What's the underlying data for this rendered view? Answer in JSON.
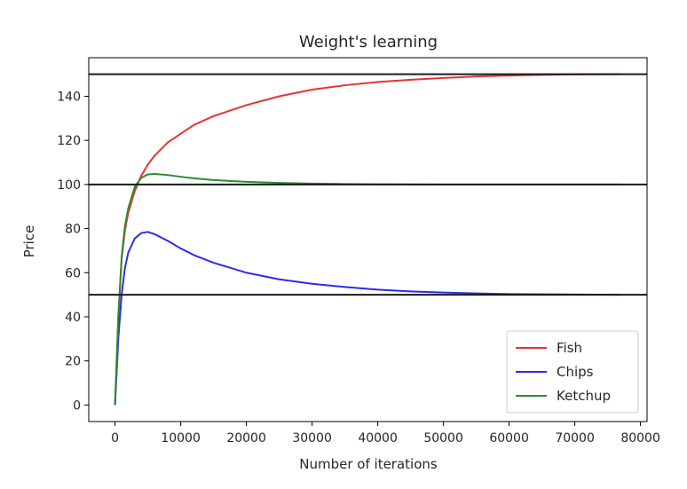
{
  "chart_data": {
    "type": "line",
    "title": "Weight's learning",
    "xlabel": "Number of iterations",
    "ylabel": "Price",
    "xlim": [
      -4000,
      81000
    ],
    "ylim": [
      -7.5,
      157.5
    ],
    "xticks": [
      0,
      10000,
      20000,
      30000,
      40000,
      50000,
      60000,
      70000,
      80000
    ],
    "yticks": [
      0,
      20,
      40,
      60,
      80,
      100,
      120,
      140
    ],
    "grid": false,
    "legend_position": "lower-right",
    "hlines": [
      {
        "y": 150,
        "color": "#1a1a1a"
      },
      {
        "y": 100,
        "color": "#1a1a1a"
      },
      {
        "y": 50,
        "color": "#1a1a1a"
      }
    ],
    "series": [
      {
        "name": "Fish",
        "color": "#e8332f",
        "x": [
          0,
          500,
          1000,
          1500,
          2000,
          3000,
          4000,
          5000,
          6000,
          8000,
          10000,
          12000,
          15000,
          20000,
          25000,
          30000,
          35000,
          40000,
          45000,
          50000,
          55000,
          60000,
          65000,
          70000,
          77000
        ],
        "y": [
          0,
          40,
          66,
          79,
          87,
          97,
          104,
          109,
          113,
          119,
          123,
          127,
          131,
          136,
          140,
          143,
          145,
          146.5,
          147.5,
          148.3,
          149,
          149.4,
          149.7,
          149.9,
          150
        ]
      },
      {
        "name": "Chips",
        "color": "#2b2bf0",
        "x": [
          0,
          500,
          1000,
          1500,
          2000,
          3000,
          4000,
          5000,
          6000,
          8000,
          10000,
          12000,
          15000,
          20000,
          25000,
          30000,
          35000,
          40000,
          45000,
          50000,
          55000,
          60000,
          65000,
          70000,
          77000
        ],
        "y": [
          0,
          30,
          50,
          62,
          69,
          75.5,
          78,
          78.5,
          77.5,
          74.5,
          71,
          68,
          64.5,
          60,
          57,
          55,
          53.5,
          52.3,
          51.5,
          51,
          50.6,
          50.3,
          50.2,
          50.1,
          50
        ]
      },
      {
        "name": "Ketchup",
        "color": "#2e8b2e",
        "x": [
          0,
          500,
          1000,
          1500,
          2000,
          3000,
          4000,
          5000,
          6000,
          8000,
          10000,
          12000,
          15000,
          20000,
          25000,
          30000,
          35000,
          40000,
          45000,
          50000,
          55000,
          60000,
          65000,
          70000,
          77000
        ],
        "y": [
          0,
          40,
          67,
          81,
          89,
          99,
          103,
          104.6,
          104.8,
          104.3,
          103.5,
          102.8,
          102,
          101.2,
          100.7,
          100.4,
          100.2,
          100.1,
          100.05,
          100,
          100,
          100,
          100,
          100,
          100
        ]
      }
    ]
  }
}
